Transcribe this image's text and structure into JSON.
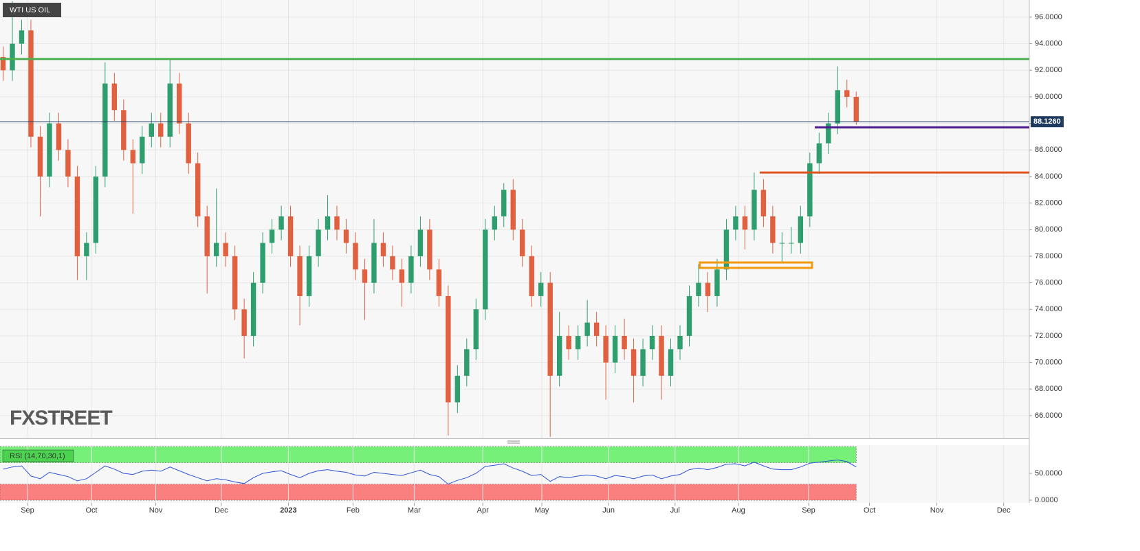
{
  "chart_data": [
    {
      "type": "candlestick",
      "title": "WTI US OIL",
      "watermark": "FXSTREET",
      "up_color": "#2f9e6e",
      "down_color": "#e0603f",
      "xlim": [
        -1,
        332
      ],
      "ylim": [
        64.29,
        97.29
      ],
      "grid": true,
      "yticks": [
        {
          "value": 66,
          "label": "66.0000"
        },
        {
          "value": 68,
          "label": "68.0000"
        },
        {
          "value": 70,
          "label": "70.0000"
        },
        {
          "value": 72,
          "label": "72.0000"
        },
        {
          "value": 74,
          "label": "74.0000"
        },
        {
          "value": 76,
          "label": "76.0000"
        },
        {
          "value": 78,
          "label": "78.0000"
        },
        {
          "value": 80,
          "label": "80.0000"
        },
        {
          "value": 82,
          "label": "82.0000"
        },
        {
          "value": 84,
          "label": "84.0000"
        },
        {
          "value": 86,
          "label": "86.0000"
        },
        {
          "value": 88,
          "label": "88.0000"
        },
        {
          "value": 90,
          "label": "90.0000"
        },
        {
          "value": 92,
          "label": "92.0000"
        },
        {
          "value": 94,
          "label": "94.0000"
        },
        {
          "value": 96,
          "label": "96.0000"
        }
      ],
      "x": [
        0,
        3,
        6,
        9,
        12,
        15,
        18,
        21,
        24,
        27,
        30,
        33,
        36,
        39,
        42,
        45,
        48,
        51,
        54,
        57,
        60,
        63,
        66,
        69,
        72,
        75,
        78,
        81,
        84,
        87,
        90,
        93,
        96,
        99,
        102,
        105,
        108,
        111,
        114,
        117,
        120,
        123,
        126,
        129,
        132,
        135,
        138,
        141,
        144,
        147,
        150,
        153,
        156,
        159,
        162,
        165,
        168,
        171,
        174,
        177,
        180,
        183,
        186,
        189,
        192,
        195,
        198,
        201,
        204,
        207,
        210,
        213,
        216,
        219,
        222,
        225,
        228,
        231,
        234,
        237,
        240,
        243,
        246,
        249,
        252,
        255,
        258,
        261,
        264,
        267,
        270,
        273,
        276
      ],
      "open": [
        93,
        92,
        94,
        95,
        87,
        84,
        88,
        86,
        84,
        78,
        79,
        84,
        91,
        89,
        86,
        85,
        87,
        88,
        87,
        91,
        88,
        85,
        81,
        78,
        79,
        78,
        74,
        72,
        76,
        79,
        80,
        81,
        78,
        75,
        78,
        80,
        81,
        80,
        79,
        77,
        76,
        79,
        78,
        77,
        76,
        78,
        80,
        77,
        75,
        67,
        69,
        71,
        74,
        80,
        81,
        83,
        80,
        78,
        75,
        76,
        69,
        72,
        71,
        72,
        73,
        72,
        70,
        72,
        71,
        69,
        71,
        72,
        69,
        71,
        72,
        75,
        76,
        75,
        77,
        80,
        81,
        80,
        83,
        81,
        79,
        79,
        79,
        81,
        85,
        86.5,
        88,
        90.5,
        90
      ],
      "high": [
        93.8,
        97.2,
        95.8,
        95.8,
        87.8,
        88.8,
        88.8,
        86.8,
        84.8,
        79.8,
        84.8,
        92.6,
        91.8,
        89.8,
        86.8,
        87.8,
        88.8,
        88.8,
        92.9,
        91.8,
        88.8,
        85.8,
        81.8,
        83.1,
        79.8,
        78.8,
        74.8,
        76.8,
        79.8,
        80.8,
        81.8,
        81.8,
        78.8,
        78.8,
        80.8,
        82.6,
        81.8,
        80.8,
        79.8,
        77.8,
        80.8,
        79.8,
        78.8,
        77.8,
        78.8,
        81,
        80.8,
        77.8,
        75.8,
        69.8,
        71.8,
        74.8,
        80.8,
        81.8,
        83.5,
        83.8,
        80.8,
        78.8,
        76.8,
        76.8,
        73.8,
        72.8,
        72.8,
        74.7,
        73.8,
        72.8,
        72.8,
        73.3,
        71.8,
        71.8,
        72.8,
        72.8,
        71.8,
        72.8,
        75.8,
        77.4,
        76.8,
        77.8,
        80.8,
        81.8,
        81.8,
        84.3,
        83.8,
        81.8,
        79.8,
        80.2,
        81.8,
        85.8,
        87.3,
        88.8,
        92.3,
        91.3,
        90.4
      ],
      "low": [
        91.2,
        91.2,
        93.2,
        86.2,
        81,
        83.2,
        85.2,
        83.2,
        76.2,
        76.2,
        78.2,
        83.2,
        88.2,
        85.2,
        81.2,
        84.2,
        86.2,
        86.2,
        86.2,
        87.2,
        84.2,
        80.2,
        75.2,
        77.2,
        77.2,
        73.2,
        70.3,
        71.2,
        75.2,
        78.2,
        79.2,
        77.2,
        72.8,
        74.2,
        77.2,
        79.2,
        79.2,
        78.2,
        76.2,
        73.2,
        75.2,
        77.2,
        76.2,
        74.2,
        75.2,
        77.2,
        76.2,
        74.2,
        64.5,
        66.2,
        68.2,
        70.2,
        73.2,
        79.2,
        80.2,
        79.2,
        77.2,
        74.2,
        74.2,
        64.4,
        68.2,
        70.2,
        70.2,
        71.2,
        71.2,
        67.2,
        69.2,
        70.2,
        67,
        68.2,
        70.2,
        67.2,
        68.2,
        70.2,
        71.2,
        74.2,
        73.8,
        74.2,
        76.2,
        79.2,
        78.5,
        79.2,
        80.2,
        78.2,
        77.5,
        78.2,
        78.2,
        80.2,
        84.2,
        85.7,
        87.2,
        89.2,
        87.9
      ],
      "close": [
        92,
        94,
        95,
        87,
        84,
        88,
        86,
        84,
        78,
        79,
        84,
        91,
        89,
        86,
        85,
        87,
        88,
        87,
        91,
        88,
        85,
        81,
        78,
        79,
        78,
        74,
        72,
        76,
        79,
        80,
        81,
        78,
        75,
        78,
        80,
        81,
        80,
        79,
        77,
        76,
        79,
        78,
        77,
        76,
        78,
        80,
        77,
        75,
        67,
        69,
        71,
        74,
        80,
        81,
        83,
        80,
        78,
        75,
        76,
        69,
        72,
        71,
        72,
        73,
        72,
        70,
        72,
        71,
        69,
        71,
        72,
        69,
        71,
        72,
        75,
        76,
        75,
        77,
        80,
        81,
        80,
        83,
        81,
        79,
        79,
        79,
        81,
        85,
        86.5,
        88,
        90.5,
        90,
        88.126
      ],
      "last_price": {
        "value": 88.126,
        "label": "88.1260",
        "color": "#1f3a5f"
      },
      "levels": [
        {
          "value": 92.85,
          "x_start": -1,
          "color": "#4caf50"
        },
        {
          "value": 87.7,
          "x_start": 262.6,
          "color": "#4b1a8c"
        },
        {
          "value": 84.3,
          "x_start": 244.8,
          "color": "#e0531f"
        }
      ],
      "zone": {
        "top": 77.53,
        "bottom": 77.12,
        "x_start": 225.4,
        "x_end": 261.7,
        "color": "#f29a0f"
      }
    },
    {
      "type": "line",
      "title": "RSI (14,70,30,1)",
      "color": "#2a52d6",
      "xlim": [
        -1,
        332
      ],
      "ylim": [
        -5.1,
        102.6
      ],
      "yticks": [
        {
          "value": 0,
          "label": "0.0000"
        },
        {
          "value": 50,
          "label": "50.0000"
        }
      ],
      "xticks": [
        {
          "value": 7.9,
          "label": "Sep"
        },
        {
          "value": 28.6,
          "label": "Oct"
        },
        {
          "value": 49.4,
          "label": "Nov"
        },
        {
          "value": 70.6,
          "label": "Dec"
        },
        {
          "value": 92.3,
          "label": "2023"
        },
        {
          "value": 113.2,
          "label": "Feb"
        },
        {
          "value": 133,
          "label": "Mar"
        },
        {
          "value": 155.2,
          "label": "Apr"
        },
        {
          "value": 174.3,
          "label": "May"
        },
        {
          "value": 195.9,
          "label": "Jun"
        },
        {
          "value": 217.4,
          "label": "Jul"
        },
        {
          "value": 237.9,
          "label": "Aug"
        },
        {
          "value": 260.6,
          "label": "Sep"
        },
        {
          "value": 280.3,
          "label": "Oct"
        },
        {
          "value": 302.1,
          "label": "Nov"
        },
        {
          "value": 323.7,
          "label": "Dec"
        }
      ],
      "bands": [
        {
          "from": 70,
          "to": 100,
          "color": "#77f07a"
        },
        {
          "from": 0,
          "to": 30,
          "color": "#fa8080"
        }
      ],
      "x": [
        0,
        3,
        6,
        9,
        12,
        15,
        18,
        21,
        24,
        27,
        30,
        33,
        36,
        39,
        42,
        45,
        48,
        51,
        54,
        57,
        60,
        63,
        66,
        69,
        72,
        75,
        78,
        81,
        84,
        87,
        90,
        93,
        96,
        99,
        102,
        105,
        108,
        111,
        114,
        117,
        120,
        123,
        126,
        129,
        132,
        135,
        138,
        141,
        144,
        147,
        150,
        153,
        156,
        159,
        162,
        165,
        168,
        171,
        174,
        177,
        180,
        183,
        186,
        189,
        192,
        195,
        198,
        201,
        204,
        207,
        210,
        213,
        216,
        219,
        222,
        225,
        228,
        231,
        234,
        237,
        240,
        243,
        246,
        249,
        252,
        255,
        258,
        261,
        264,
        267,
        270,
        273,
        276
      ],
      "values": [
        58,
        62,
        64,
        45,
        40,
        52,
        48,
        44,
        36,
        40,
        52,
        64,
        58,
        50,
        48,
        54,
        56,
        54,
        62,
        55,
        48,
        42,
        36,
        40,
        38,
        34,
        31,
        42,
        50,
        53,
        55,
        48,
        42,
        50,
        55,
        57,
        54,
        52,
        47,
        45,
        52,
        50,
        48,
        46,
        51,
        56,
        48,
        44,
        30,
        37,
        42,
        50,
        63,
        65,
        68,
        60,
        54,
        46,
        48,
        35,
        44,
        42,
        45,
        47,
        45,
        40,
        46,
        44,
        40,
        45,
        47,
        40,
        45,
        48,
        57,
        60,
        57,
        61,
        67,
        68,
        64,
        71,
        64,
        58,
        57,
        57,
        62,
        69,
        71,
        73,
        75,
        72,
        62
      ]
    }
  ]
}
